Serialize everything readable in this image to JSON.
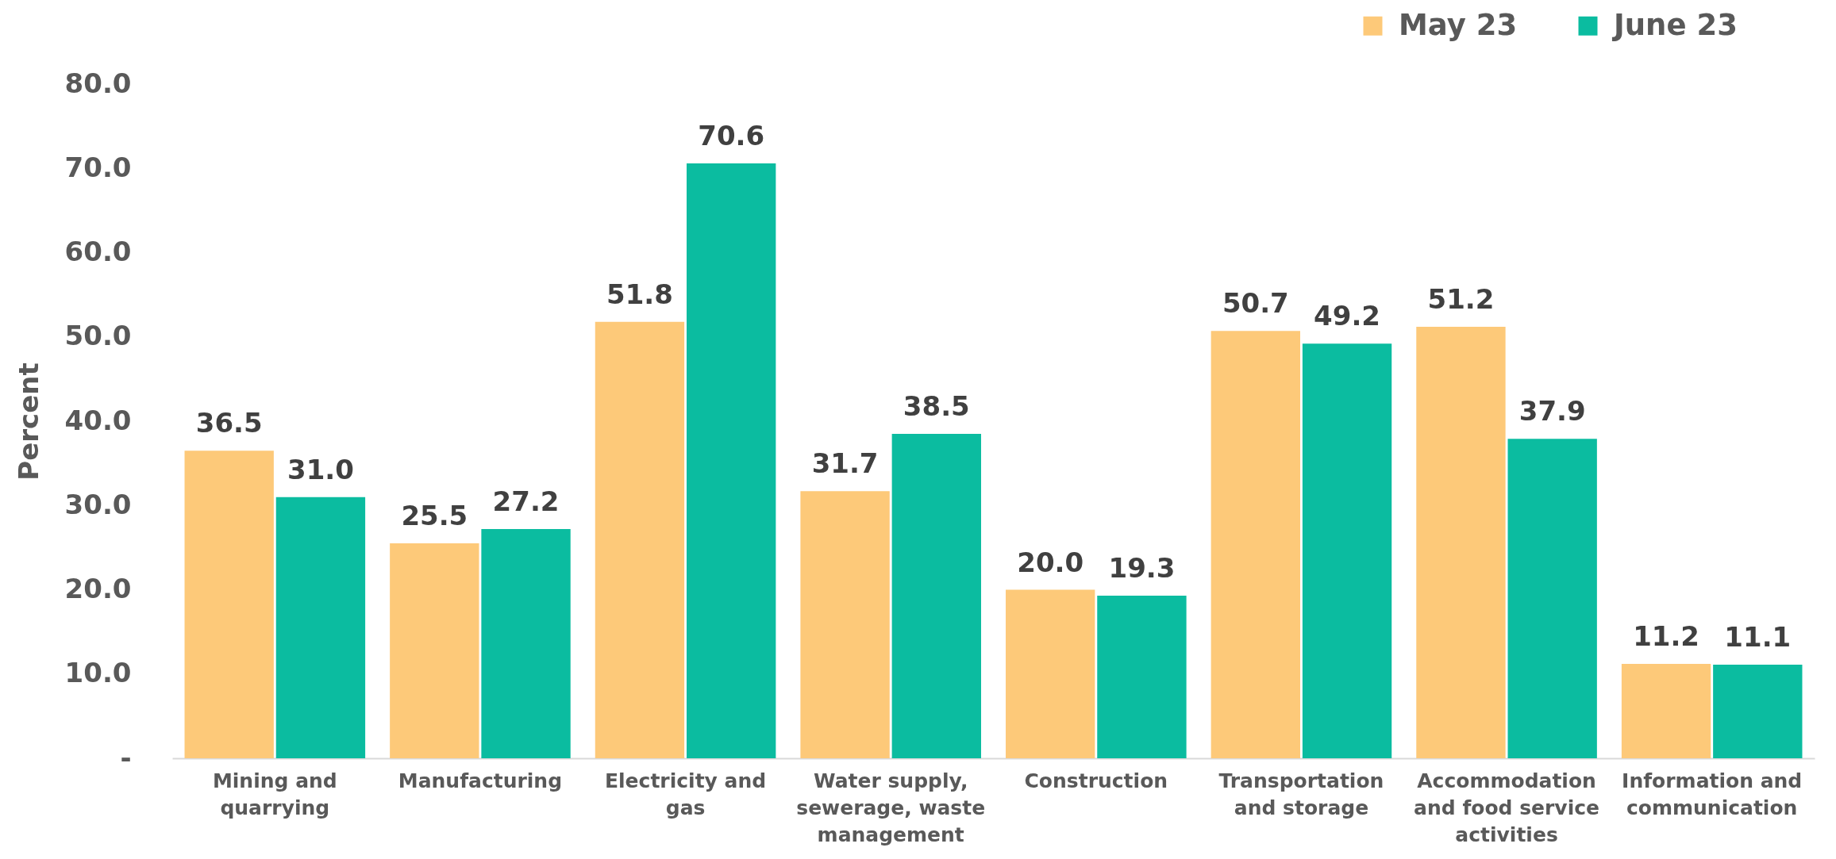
{
  "chart_data": {
    "type": "bar",
    "ylabel": "Percent",
    "categories": [
      "Mining and quarrying",
      "Manufacturing",
      "Electricity and gas",
      "Water supply, sewerage, waste management",
      "Construction",
      "Transportation and storage",
      "Accommodation and food service activities",
      "Information and communication"
    ],
    "series": [
      {
        "name": "May 23",
        "color": "#fdc979",
        "values": [
          36.5,
          25.5,
          51.8,
          31.7,
          20.0,
          50.7,
          51.2,
          11.2
        ],
        "value_labels": [
          "36.5",
          "25.5",
          "51.8",
          "31.7",
          "20.0",
          "50.7",
          "51.2",
          "11.2"
        ]
      },
      {
        "name": "June 23",
        "color": "#0bbca0",
        "values": [
          31.0,
          27.2,
          70.6,
          38.5,
          19.3,
          49.2,
          37.9,
          11.1
        ],
        "value_labels": [
          "31.0",
          "27.2",
          "70.6",
          "38.5",
          "19.3",
          "49.2",
          "37.9",
          "11.1"
        ]
      }
    ],
    "ylim": [
      0,
      80
    ],
    "yticks": [
      {
        "value": 0,
        "label": "-"
      },
      {
        "value": 10,
        "label": "10.0"
      },
      {
        "value": 20,
        "label": "20.0"
      },
      {
        "value": 30,
        "label": "30.0"
      },
      {
        "value": 40,
        "label": "40.0"
      },
      {
        "value": 50,
        "label": "50.0"
      },
      {
        "value": 60,
        "label": "60.0"
      },
      {
        "value": 70,
        "label": "70.0"
      },
      {
        "value": 80,
        "label": "80.0"
      }
    ],
    "legend": "top right"
  }
}
